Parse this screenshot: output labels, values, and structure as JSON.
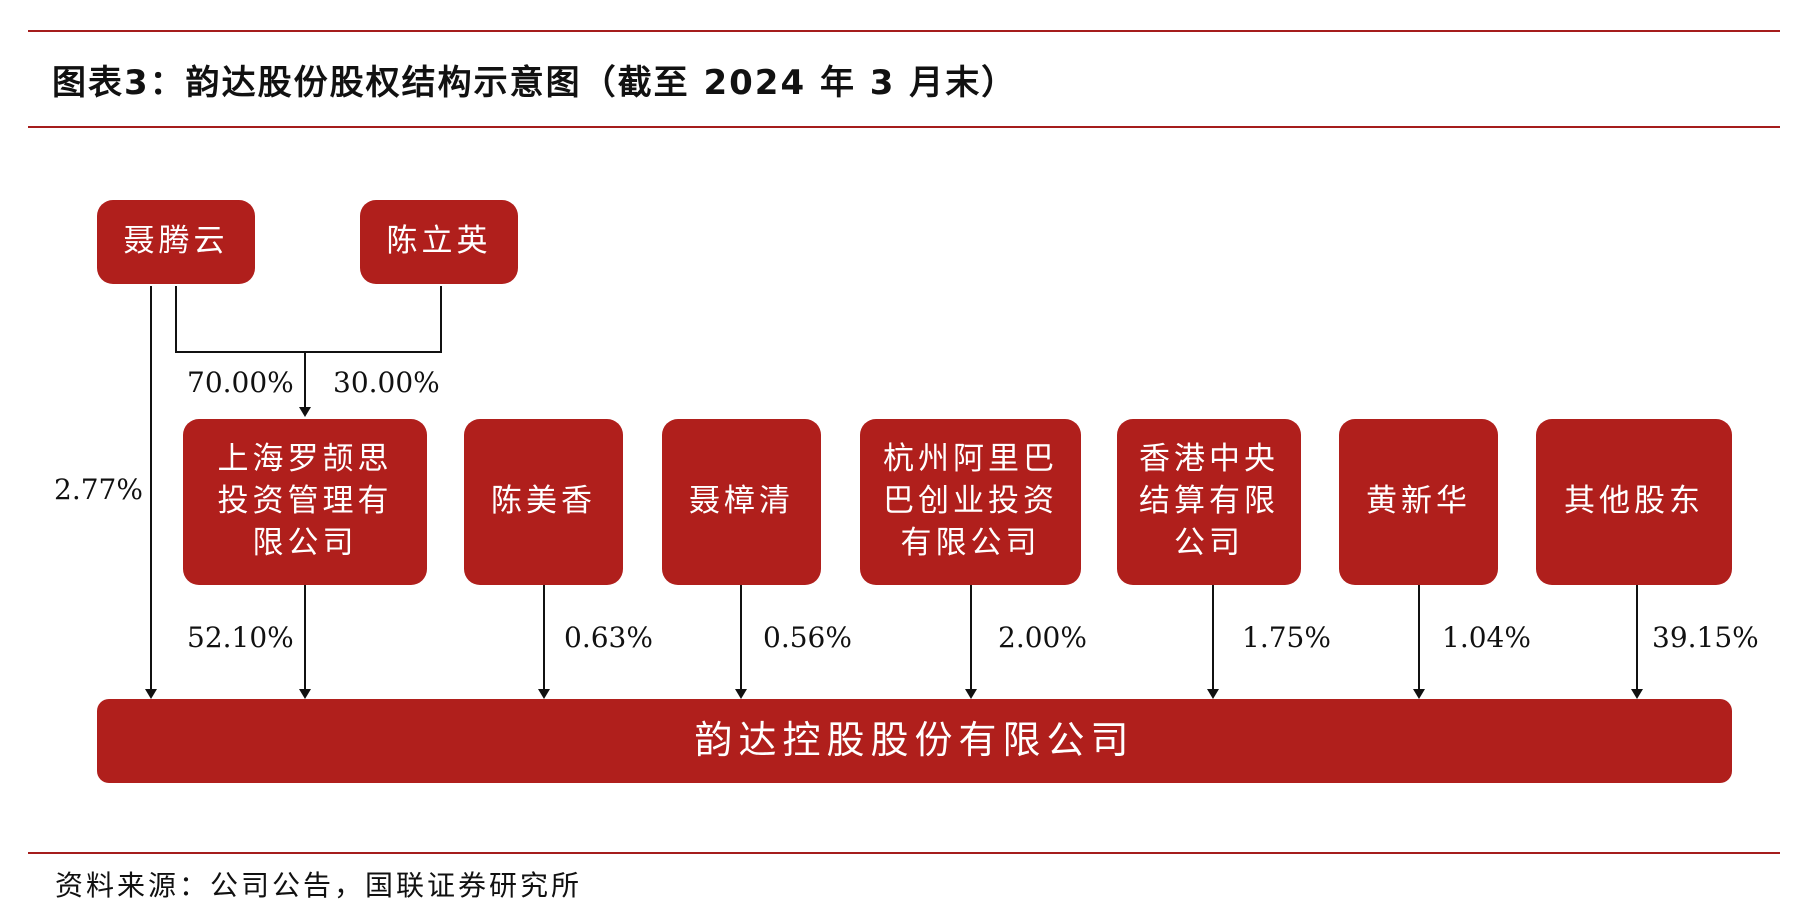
{
  "title": "图表3：韵达股份股权结构示意图（截至 2024 年 3 月末）",
  "source": "资料来源：公司公告，国联证券研究所",
  "colors": {
    "box": "#b01f1c",
    "rule": "#a51d1c",
    "text": "#111111"
  },
  "entities": {
    "nie_tengyun": "聂腾云",
    "chen_liying": "陈立英",
    "luosi": "上海罗颉思\n投资管理有\n限公司",
    "chen_meixiang": "陈美香",
    "nie_zhangqing": "聂樟清",
    "alibaba": "杭州阿里巴\n巴创业投资\n有限公司",
    "hkscc": "香港中央\n结算有限\n公司",
    "huang_xinhua": "黄新华",
    "others": "其他股东",
    "company": "韵达控股股份有限公司"
  },
  "percentages": {
    "nie_to_luosi": "70.00%",
    "chen_to_luosi": "30.00%",
    "nie_direct": "2.77%",
    "luosi": "52.10%",
    "chen_meixiang": "0.63%",
    "nie_zhangqing": "0.56%",
    "alibaba": "2.00%",
    "hkscc": "1.75%",
    "huang_xinhua": "1.04%",
    "others": "39.15%"
  }
}
